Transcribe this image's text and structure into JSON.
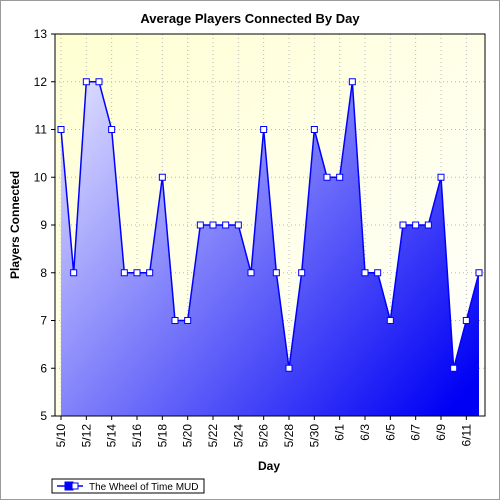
{
  "chart_data": {
    "type": "area",
    "title": "Average Players Connected By Day",
    "xlabel": "Day",
    "ylabel": "Players Connected",
    "ylim": [
      5,
      13
    ],
    "yticks": [
      5,
      6,
      7,
      8,
      9,
      10,
      11,
      12,
      13
    ],
    "grid": true,
    "legend_position": "bottom-left",
    "categories": [
      "5/10",
      "5/11",
      "5/12",
      "5/13",
      "5/14",
      "5/15",
      "5/16",
      "5/17",
      "5/18",
      "5/19",
      "5/20",
      "5/21",
      "5/22",
      "5/23",
      "5/24",
      "5/25",
      "5/26",
      "5/27",
      "5/28",
      "5/29",
      "5/30",
      "5/31",
      "6/1",
      "6/2",
      "6/3",
      "6/4",
      "6/5",
      "6/6",
      "6/7",
      "6/8",
      "6/9",
      "6/10",
      "6/11",
      "6/12"
    ],
    "tick_labels": [
      "5/10",
      "5/12",
      "5/14",
      "5/16",
      "5/18",
      "5/20",
      "5/22",
      "5/24",
      "5/26",
      "5/28",
      "5/30",
      "6/1",
      "6/3",
      "6/5",
      "6/7",
      "6/9",
      "6/11"
    ],
    "series": [
      {
        "name": "The Wheel of Time MUD",
        "color": "#0000ff",
        "values": [
          11,
          8,
          12,
          12,
          11,
          8,
          8,
          8,
          10,
          7,
          7,
          9,
          9,
          9,
          9,
          8,
          11,
          8,
          6,
          8,
          11,
          10,
          10,
          12,
          8,
          8,
          7,
          9,
          9,
          9,
          10,
          6,
          7,
          8
        ]
      }
    ],
    "colors": {
      "plot_background_top": "#ffffd0",
      "plot_background_bottom": "#ffffff",
      "area_light": "#d8d8ff",
      "area_dark": "#0000ff"
    }
  }
}
